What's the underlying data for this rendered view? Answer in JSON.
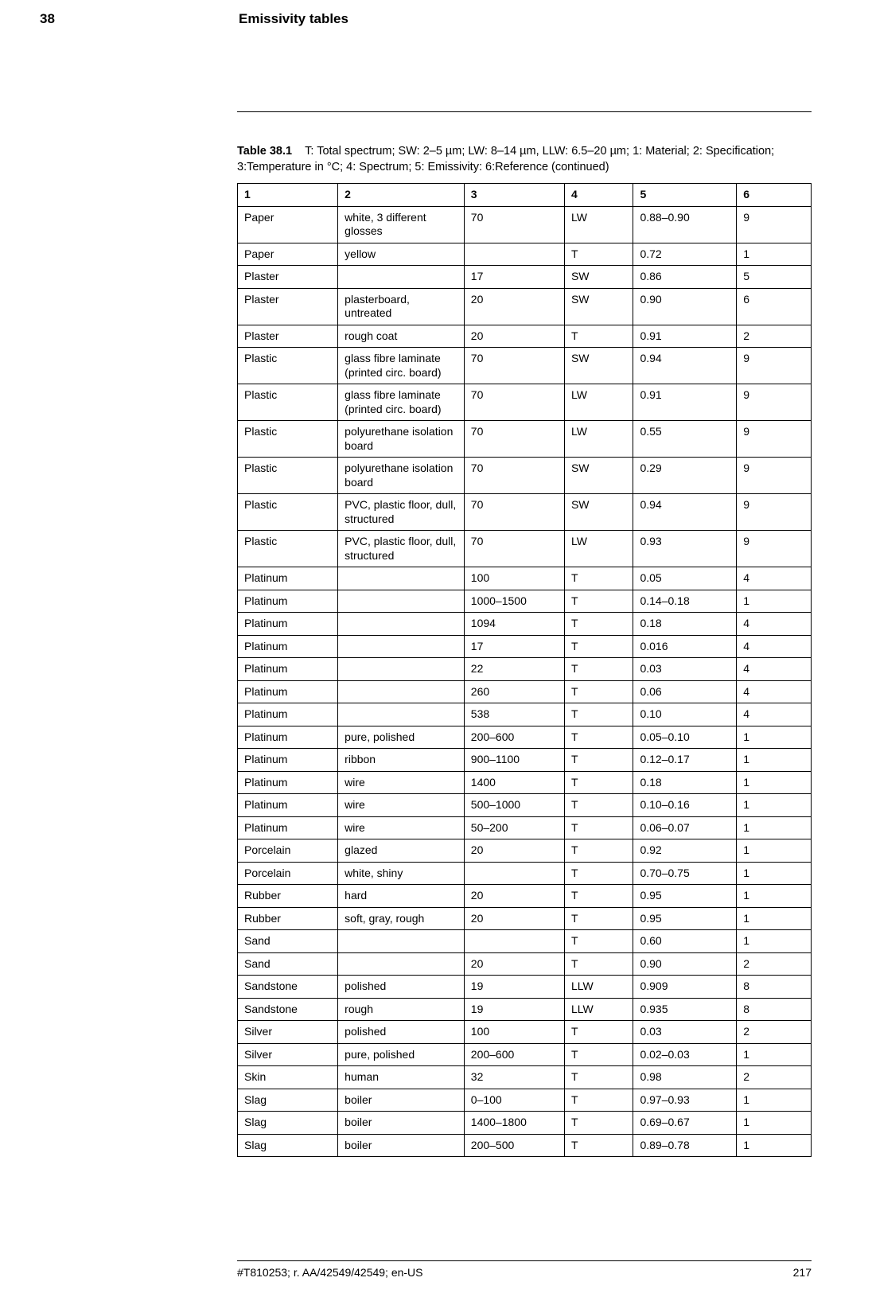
{
  "header": {
    "chapter_number": "38",
    "chapter_title": "Emissivity tables"
  },
  "caption": {
    "label": "Table 38.1",
    "text": "T: Total spectrum; SW: 2–5 µm; LW: 8–14 µm, LLW: 6.5–20 µm; 1: Material; 2: Specification; 3:Temperature in °C; 4: Spectrum; 5: Emissivity: 6:Reference (continued)"
  },
  "table": {
    "column_widths_pct": [
      17.5,
      22,
      17.5,
      12,
      18,
      13
    ],
    "header_fontsize": 14,
    "cell_fontsize": 14,
    "border_color": "#000000",
    "columns": [
      "1",
      "2",
      "3",
      "4",
      "5",
      "6"
    ],
    "rows": [
      [
        "Paper",
        "white, 3 different glosses",
        "70",
        "LW",
        "0.88–0.90",
        "9"
      ],
      [
        "Paper",
        "yellow",
        "",
        "T",
        "0.72",
        "1"
      ],
      [
        "Plaster",
        "",
        "17",
        "SW",
        "0.86",
        "5"
      ],
      [
        "Plaster",
        "plasterboard, untreated",
        "20",
        "SW",
        "0.90",
        "6"
      ],
      [
        "Plaster",
        "rough coat",
        "20",
        "T",
        "0.91",
        "2"
      ],
      [
        "Plastic",
        "glass fibre lami­nate (printed circ. board)",
        "70",
        "SW",
        "0.94",
        "9"
      ],
      [
        "Plastic",
        "glass fibre lami­nate (printed circ. board)",
        "70",
        "LW",
        "0.91",
        "9"
      ],
      [
        "Plastic",
        "polyurethane iso­lation board",
        "70",
        "LW",
        "0.55",
        "9"
      ],
      [
        "Plastic",
        "polyurethane iso­lation board",
        "70",
        "SW",
        "0.29",
        "9"
      ],
      [
        "Plastic",
        "PVC, plastic floor, dull, structured",
        "70",
        "SW",
        "0.94",
        "9"
      ],
      [
        "Plastic",
        "PVC, plastic floor, dull, structured",
        "70",
        "LW",
        "0.93",
        "9"
      ],
      [
        "Platinum",
        "",
        "100",
        "T",
        "0.05",
        "4"
      ],
      [
        "Platinum",
        "",
        "1000–1500",
        "T",
        "0.14–0.18",
        "1"
      ],
      [
        "Platinum",
        "",
        "1094",
        "T",
        "0.18",
        "4"
      ],
      [
        "Platinum",
        "",
        "17",
        "T",
        "0.016",
        "4"
      ],
      [
        "Platinum",
        "",
        "22",
        "T",
        "0.03",
        "4"
      ],
      [
        "Platinum",
        "",
        "260",
        "T",
        "0.06",
        "4"
      ],
      [
        "Platinum",
        "",
        "538",
        "T",
        "0.10",
        "4"
      ],
      [
        "Platinum",
        "pure, polished",
        "200–600",
        "T",
        "0.05–0.10",
        "1"
      ],
      [
        "Platinum",
        "ribbon",
        "900–1100",
        "T",
        "0.12–0.17",
        "1"
      ],
      [
        "Platinum",
        "wire",
        "1400",
        "T",
        "0.18",
        "1"
      ],
      [
        "Platinum",
        "wire",
        "500–1000",
        "T",
        "0.10–0.16",
        "1"
      ],
      [
        "Platinum",
        "wire",
        "50–200",
        "T",
        "0.06–0.07",
        "1"
      ],
      [
        "Porcelain",
        "glazed",
        "20",
        "T",
        "0.92",
        "1"
      ],
      [
        "Porcelain",
        "white, shiny",
        "",
        "T",
        "0.70–0.75",
        "1"
      ],
      [
        "Rubber",
        "hard",
        "20",
        "T",
        "0.95",
        "1"
      ],
      [
        "Rubber",
        "soft, gray, rough",
        "20",
        "T",
        "0.95",
        "1"
      ],
      [
        "Sand",
        "",
        "",
        "T",
        "0.60",
        "1"
      ],
      [
        "Sand",
        "",
        "20",
        "T",
        "0.90",
        "2"
      ],
      [
        "Sandstone",
        "polished",
        "19",
        "LLW",
        "0.909",
        "8"
      ],
      [
        "Sandstone",
        "rough",
        "19",
        "LLW",
        "0.935",
        "8"
      ],
      [
        "Silver",
        "polished",
        "100",
        "T",
        "0.03",
        "2"
      ],
      [
        "Silver",
        "pure, polished",
        "200–600",
        "T",
        "0.02–0.03",
        "1"
      ],
      [
        "Skin",
        "human",
        "32",
        "T",
        "0.98",
        "2"
      ],
      [
        "Slag",
        "boiler",
        "0–100",
        "T",
        "0.97–0.93",
        "1"
      ],
      [
        "Slag",
        "boiler",
        "1400–1800",
        "T",
        "0.69–0.67",
        "1"
      ],
      [
        "Slag",
        "boiler",
        "200–500",
        "T",
        "0.89–0.78",
        "1"
      ]
    ]
  },
  "footer": {
    "doc_id": "#T810253; r. AA/42549/42549; en-US",
    "page_number": "217"
  }
}
